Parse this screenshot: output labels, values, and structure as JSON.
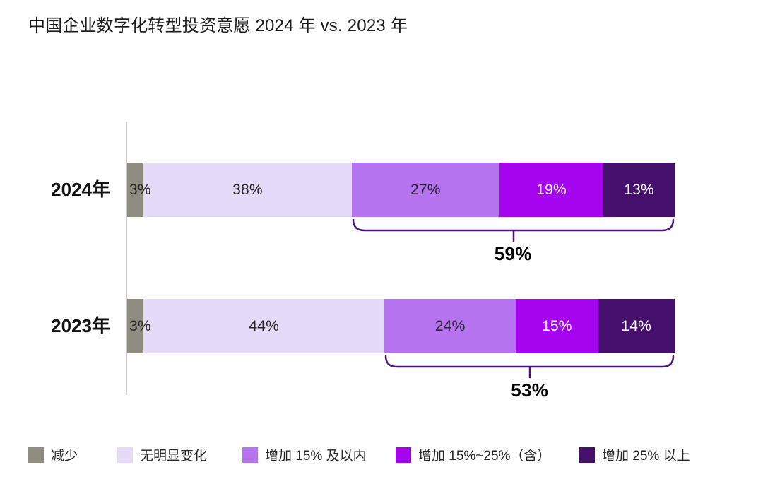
{
  "page": {
    "title": "中国企业数字化转型投资意愿 2024 年 vs. 2023 年"
  },
  "chart_data": {
    "type": "bar",
    "variant": "horizontal-stacked",
    "unit": "%",
    "title": "中国企业数字化转型投资意愿 2024 年 vs. 2023 年",
    "categories": [
      "减少",
      "无明显变化",
      "增加 15% 及以内",
      "增加 15%~25%（含）",
      "增加 25% 以上"
    ],
    "series": [
      {
        "name": "2024年",
        "values": [
          3,
          38,
          27,
          19,
          13
        ],
        "value_labels": [
          "3%",
          "38%",
          "27%",
          "19%",
          "13%"
        ],
        "increase_total": 59,
        "increase_total_label": "59%"
      },
      {
        "name": "2023年",
        "values": [
          3,
          44,
          24,
          15,
          14
        ],
        "value_labels": [
          "3%",
          "44%",
          "24%",
          "15%",
          "14%"
        ],
        "increase_total": 53,
        "increase_total_label": "53%"
      }
    ],
    "bracket_covers_categories": [
      "增加 15% 及以内",
      "增加 15%~25%（含）",
      "增加 25% 以上"
    ],
    "bracket_start_category_index": 2,
    "xlim": [
      0,
      100
    ],
    "legend_position": "bottom",
    "grid": false,
    "colors": {
      "segments": [
        "#8F8C80",
        "#E5DAF7",
        "#B673F0",
        "#A505EE",
        "#45106B"
      ],
      "segment_label_colors": [
        "#262626",
        "#262626",
        "#2B2230",
        "#FFFFFF",
        "#FFFFFF"
      ],
      "bracket": "#4E1280",
      "axis_line": "#C9C9C9",
      "title_text": "#1C1C1C",
      "total_text": "#000000"
    }
  }
}
